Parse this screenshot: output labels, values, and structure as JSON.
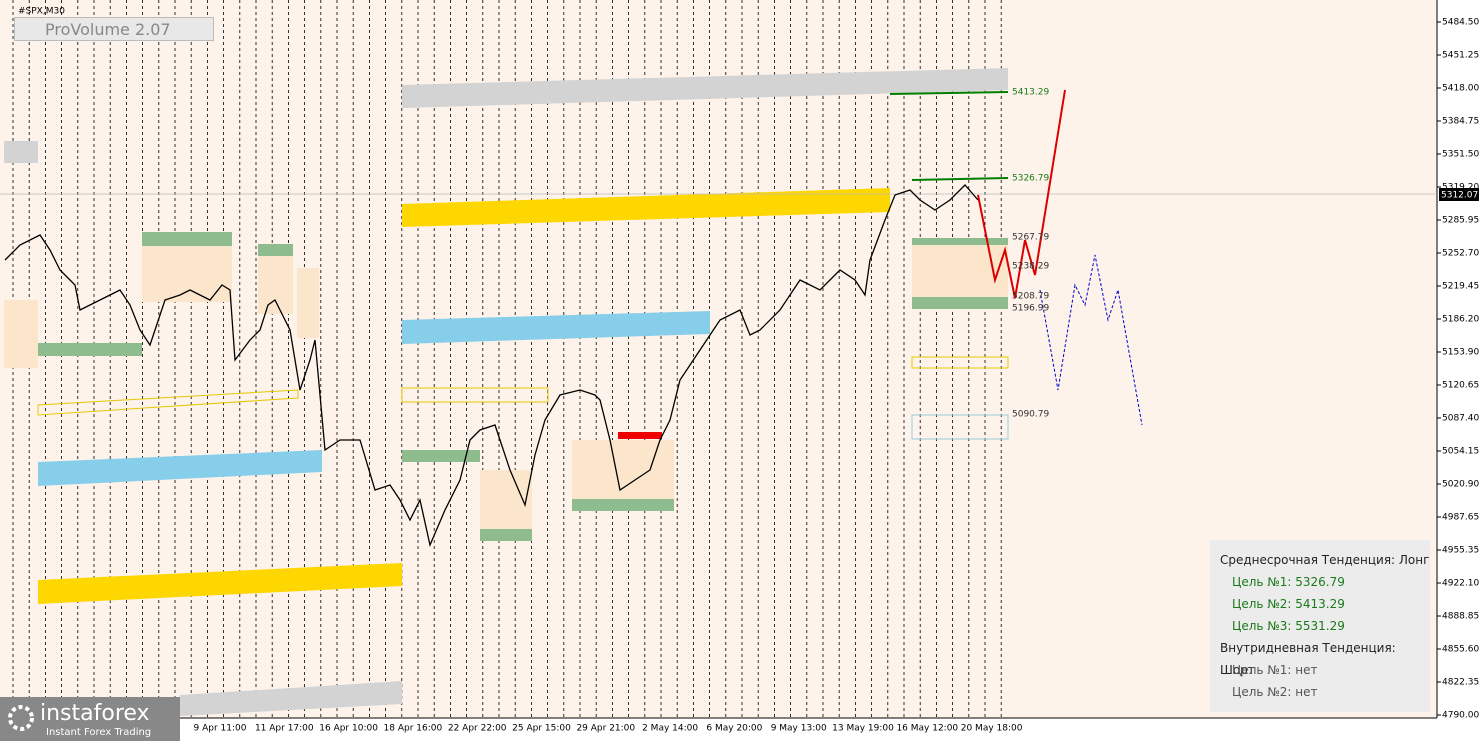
{
  "header": {
    "symbol": "#SPX,M30",
    "indicator": "ProVolume 2.07"
  },
  "price_axis": {
    "labels": [
      "5484.50",
      "5451.25",
      "5418.00",
      "5384.75",
      "5351.50",
      "5319.20",
      "5285.95",
      "5252.70",
      "5219.45",
      "5186.20",
      "5153.90",
      "5120.65",
      "5087.40",
      "5054.15",
      "5020.90",
      "4987.65",
      "4955.35",
      "4922.10",
      "4888.85",
      "4855.60",
      "4822.35",
      "4790.00"
    ],
    "current_price": "5312.07"
  },
  "time_axis": {
    "labels": [
      "9 Apr 11:00",
      "11 Apr 17:00",
      "16 Apr 10:00",
      "18 Apr 16:00",
      "22 Apr 22:00",
      "25 Apr 15:00",
      "29 Apr 21:00",
      "2 May 14:00",
      "6 May 20:00",
      "9 May 13:00",
      "13 May 19:00",
      "16 May 12:00",
      "20 May 18:00"
    ]
  },
  "levels": [
    "5413.29",
    "5326.79",
    "5267.79",
    "5238.29",
    "5208.79",
    "5196.99",
    "5090.79"
  ],
  "panel": {
    "lines": [
      "Среднесрочная Тенденция: Лонг",
      "Цель №1: 5326.79",
      "Цель №2: 5413.29",
      "Цель №3: 5531.29",
      "Внутридневная Тенденция: Шорт",
      "Цель №1: нет",
      "Цель №2: нет"
    ]
  },
  "logo": {
    "name": "instaforex",
    "tagline": "Instant Forex Trading"
  }
}
